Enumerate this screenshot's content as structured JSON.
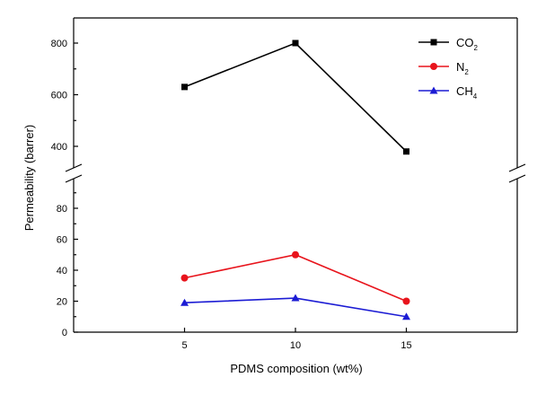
{
  "chart_data": {
    "type": "line",
    "title": "",
    "xlabel": "PDMS composition (wt%)",
    "ylabel": "Permeability (barrer)",
    "x": [
      5,
      10,
      15
    ],
    "xticks": [
      "5",
      "10",
      "15"
    ],
    "xlim": [
      0,
      20
    ],
    "y_axis_break": true,
    "y_segments": [
      {
        "range": [
          0,
          95
        ],
        "ticks": [
          0,
          20,
          40,
          60,
          80
        ]
      },
      {
        "range": [
          330,
          840
        ],
        "ticks": [
          400,
          600,
          800
        ]
      }
    ],
    "grid": false,
    "legend_position": "top-right",
    "series": [
      {
        "name": "CO2",
        "label_main": "CO",
        "label_sub": "2",
        "color": "#000000",
        "marker": "square",
        "values": [
          630,
          800,
          380
        ]
      },
      {
        "name": "N2",
        "label_main": "N",
        "label_sub": "2",
        "color": "#e8141c",
        "marker": "circle",
        "values": [
          35,
          50,
          20
        ]
      },
      {
        "name": "CH4",
        "label_main": "CH",
        "label_sub": "4",
        "color": "#1c1cd4",
        "marker": "triangle",
        "values": [
          19,
          22,
          10
        ]
      }
    ]
  }
}
